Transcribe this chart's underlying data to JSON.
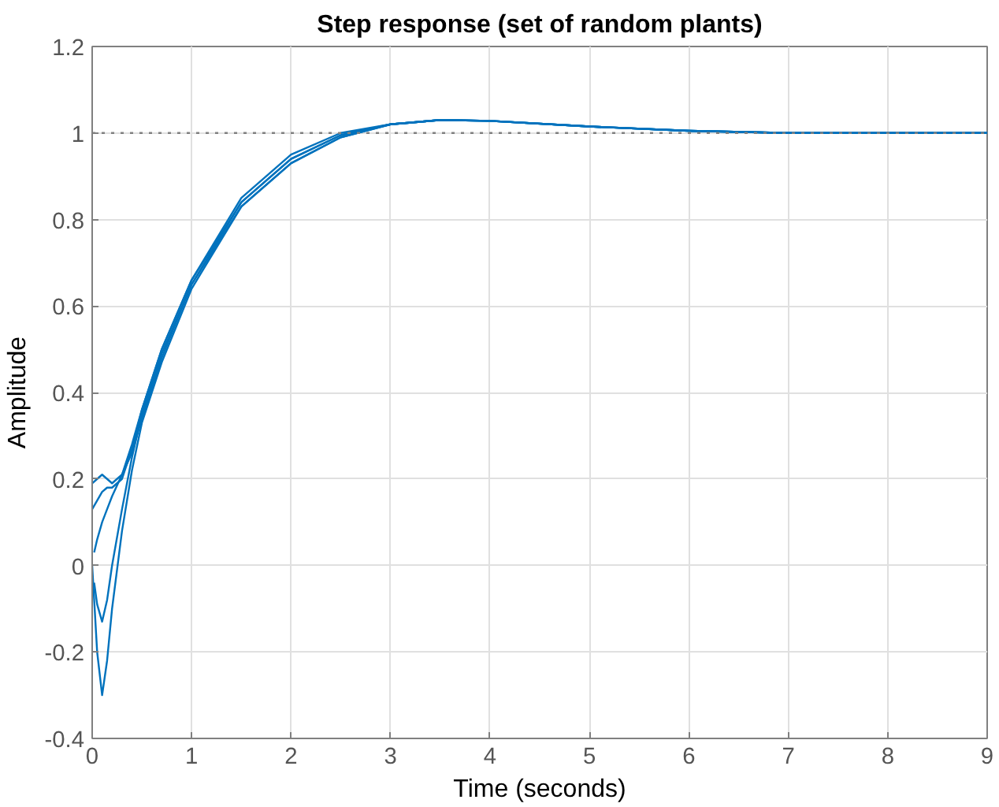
{
  "chart_data": {
    "type": "line",
    "title": "Step response (set of random plants)",
    "xlabel": "Time (seconds)",
    "ylabel": "Amplitude",
    "x": [
      0,
      0.05,
      0.1,
      0.15,
      0.2,
      0.3,
      0.4,
      0.5,
      0.7,
      1,
      1.5,
      2,
      2.5,
      3,
      3.5,
      4,
      5,
      6,
      7,
      8,
      9
    ],
    "series": [
      {
        "color": "#0072bd",
        "values": [
          0,
          -0.2,
          -0.3,
          -0.22,
          -0.1,
          0.08,
          0.22,
          0.33,
          0.47,
          0.64,
          0.83,
          0.93,
          0.99,
          1.02,
          1.03,
          1.028,
          1.015,
          1.005,
          1.0,
          1.0,
          1.0
        ]
      },
      {
        "color": "#0072bd",
        "x": [
          0.02,
          0.05,
          0.1,
          0.15,
          0.2,
          0.3,
          0.4,
          0.5,
          0.7,
          1,
          1.5,
          2,
          2.5,
          3,
          3.5,
          4,
          5,
          6,
          7,
          8,
          9
        ],
        "values": [
          -0.04,
          -0.09,
          -0.13,
          -0.08,
          0.0,
          0.13,
          0.25,
          0.35,
          0.49,
          0.65,
          0.84,
          0.94,
          0.995,
          1.02,
          1.03,
          1.028,
          1.015,
          1.005,
          1.0,
          1.0,
          1.0
        ]
      },
      {
        "color": "#0072bd",
        "x": [
          0.02,
          0.05,
          0.1,
          0.15,
          0.2,
          0.3,
          0.4,
          0.5,
          0.7,
          1,
          1.5,
          2,
          2.5,
          3,
          3.5,
          4,
          5,
          6,
          7,
          8,
          9
        ],
        "values": [
          0.03,
          0.06,
          0.1,
          0.13,
          0.16,
          0.21,
          0.28,
          0.36,
          0.5,
          0.66,
          0.84,
          0.94,
          0.995,
          1.02,
          1.03,
          1.028,
          1.015,
          1.005,
          1.0,
          1.0,
          1.0
        ]
      },
      {
        "color": "#0072bd",
        "values": [
          0.19,
          0.2,
          0.21,
          0.2,
          0.19,
          0.21,
          0.26,
          0.34,
          0.48,
          0.65,
          0.83,
          0.93,
          0.99,
          1.02,
          1.03,
          1.028,
          1.015,
          1.005,
          1.0,
          1.0,
          1.0
        ]
      },
      {
        "color": "#0072bd",
        "values": [
          0.13,
          0.15,
          0.17,
          0.18,
          0.18,
          0.2,
          0.27,
          0.36,
          0.5,
          0.66,
          0.85,
          0.95,
          1.0,
          1.02,
          1.03,
          1.028,
          1.015,
          1.005,
          1.0,
          1.0,
          1.0
        ]
      }
    ],
    "xlim": [
      0,
      9
    ],
    "ylim": [
      -0.4,
      1.2
    ],
    "xticks": [
      0,
      1,
      2,
      3,
      4,
      5,
      6,
      7,
      8,
      9
    ],
    "yticks": [
      -0.4,
      -0.2,
      0,
      0.2,
      0.4,
      0.6,
      0.8,
      1,
      1.2
    ],
    "ref_lines": [
      {
        "axis": "y",
        "value": 1,
        "color": "#808080",
        "line_style": "dotted"
      }
    ],
    "grid": true,
    "marker": "none",
    "line_style": "solid"
  }
}
